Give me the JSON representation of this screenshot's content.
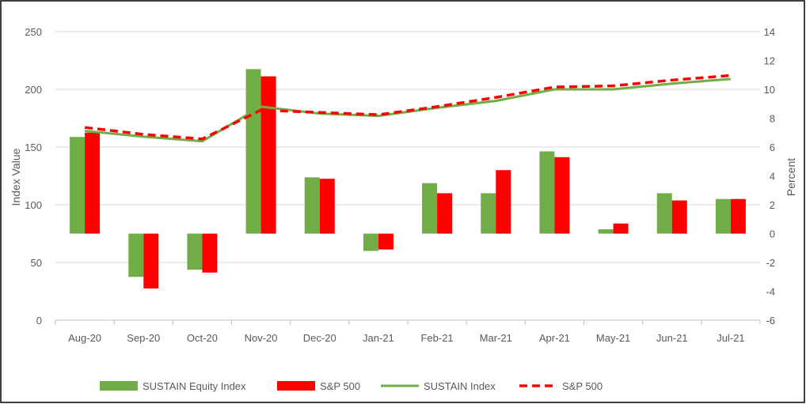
{
  "chart_data": {
    "type": "bar",
    "title": "",
    "categories": [
      "Aug-20",
      "Sep-20",
      "Oct-20",
      "Nov-20",
      "Dec-20",
      "Jan-21",
      "Feb-21",
      "Mar-21",
      "Apr-21",
      "May-21",
      "Jun-21",
      "Jul-21"
    ],
    "bar_series": [
      {
        "name": "SUSTAIN Equity Index",
        "color": "#70ad47",
        "axis": "right",
        "values": [
          6.7,
          -3.0,
          -2.5,
          11.4,
          3.9,
          -1.2,
          3.5,
          2.8,
          5.7,
          0.3,
          2.8,
          2.4
        ]
      },
      {
        "name": "S&P 500",
        "color": "#ff0000",
        "axis": "right",
        "values": [
          7.0,
          -3.8,
          -2.7,
          10.9,
          3.8,
          -1.1,
          2.8,
          4.4,
          5.3,
          0.7,
          2.3,
          2.4
        ]
      }
    ],
    "line_series": [
      {
        "name": "SUSTAIN Index",
        "color": "#70ad47",
        "style": "solid",
        "axis": "left",
        "values": [
          164,
          159,
          155,
          185,
          179,
          177,
          184,
          190,
          200,
          200,
          205,
          209
        ]
      },
      {
        "name": "S&P 500",
        "color": "#ff0000",
        "style": "dashed",
        "axis": "left",
        "values": [
          167,
          161,
          157,
          182,
          180,
          178,
          185,
          193,
          202,
          203,
          208,
          212
        ]
      }
    ],
    "left_axis": {
      "label": "Index Value",
      "min": 0,
      "max": 250,
      "ticks": [
        "0",
        "50",
        "100",
        "150",
        "200",
        "250"
      ]
    },
    "right_axis": {
      "label": "Percent",
      "min": -6,
      "max": 14,
      "ticks": [
        "-6",
        "-4",
        "-2",
        "0",
        "2",
        "4",
        "6",
        "8",
        "10",
        "12",
        "14"
      ]
    },
    "grid": true,
    "legend_position": "bottom"
  }
}
